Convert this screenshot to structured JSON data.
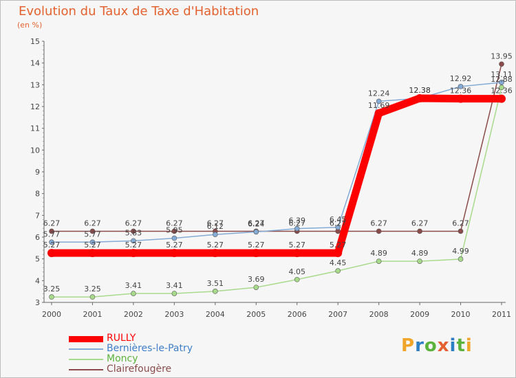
{
  "header": {
    "title": "Evolution du Taux de Taxe d'Habitation",
    "unit": "(en %)"
  },
  "logo": {
    "text": "Proxiti",
    "letter_colors": [
      "#f0a52a",
      "#2c7fc4",
      "#5cb33c",
      "#e3622f",
      "#2c7fc4",
      "#5cb33c",
      "#f0a52a"
    ]
  },
  "chart_data": {
    "type": "line",
    "title": "Evolution du Taux de Taxe d'Habitation",
    "ylabel": "(en %)",
    "x": [
      "2000",
      "2001",
      "2002",
      "2003",
      "2004",
      "2005",
      "2006",
      "2007",
      "2008",
      "2009",
      "2010",
      "2011"
    ],
    "ylim": [
      3,
      15
    ],
    "yticks": [
      "3",
      "4",
      "5",
      "6",
      "7",
      "8",
      "9",
      "10",
      "11",
      "12",
      "13",
      "14",
      "15"
    ],
    "grid": false,
    "legend_position": "bottom-left",
    "series": [
      {
        "name": "RULLY",
        "color": "#ff0000",
        "values": [
          5.27,
          5.27,
          5.27,
          5.27,
          5.27,
          5.27,
          5.27,
          5.27,
          11.69,
          12.38,
          12.36,
          12.36
        ],
        "labels": [
          "5.27",
          "5.27",
          "5.27",
          "5.27",
          "5.27",
          "5.27",
          "5.27",
          "5.27",
          "11.69",
          "12.38",
          "12.36",
          "12.36"
        ]
      },
      {
        "name": "Bernières-le-Patry",
        "color": "#84abd6",
        "values": [
          5.77,
          5.77,
          5.83,
          5.95,
          6.12,
          6.24,
          6.39,
          6.45,
          12.24,
          12.38,
          12.92,
          13.11
        ],
        "labels": [
          "5.77",
          "5.77",
          "5.83",
          "5.95",
          "6.12",
          "6.24",
          "6.39",
          "6.45",
          "12.24",
          "12.38",
          "12.92",
          "13.11"
        ]
      },
      {
        "name": "Moncy",
        "color": "#a8da8c",
        "values": [
          3.25,
          3.25,
          3.41,
          3.41,
          3.51,
          3.69,
          4.05,
          4.45,
          4.89,
          4.89,
          4.99,
          12.88
        ],
        "labels": [
          "3.25",
          "3.25",
          "3.41",
          "3.41",
          "3.51",
          "3.69",
          "4.05",
          "4.45",
          "4.89",
          "4.89",
          "4.99",
          "12.88"
        ]
      },
      {
        "name": "Clairefougère",
        "color": "#8b4b4b",
        "values": [
          6.27,
          6.27,
          6.27,
          6.27,
          6.27,
          6.27,
          6.27,
          6.27,
          6.27,
          6.27,
          6.27,
          13.95
        ],
        "labels": [
          "6.27",
          "6.27",
          "6.27",
          "6.27",
          "6.27",
          "6.27",
          "6.27",
          "6.27",
          "6.27",
          "6.27",
          "6.27",
          "13.95"
        ]
      }
    ]
  }
}
